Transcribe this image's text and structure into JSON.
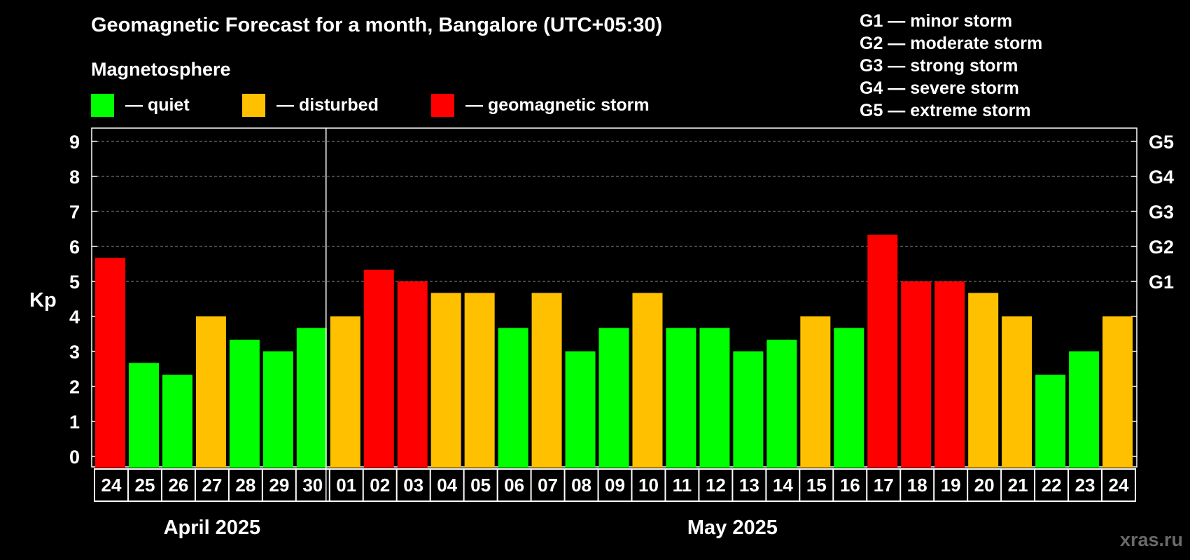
{
  "title": "Geomagnetic Forecast for a month, Bangalore (UTC+05:30)",
  "subtitle": "Magnetosphere",
  "legend": [
    {
      "label": "— quiet",
      "color": "#00ff00"
    },
    {
      "label": "— disturbed",
      "color": "#ffc000"
    },
    {
      "label": "— geomagnetic storm",
      "color": "#ff0000"
    }
  ],
  "storm_scale": [
    "G1 — minor storm",
    "G2 — moderate storm",
    "G3 — strong storm",
    "G4 — severe storm",
    "G5 — extreme storm"
  ],
  "watermark": "xras.ru",
  "colors": {
    "quiet": "#00ff00",
    "disturbed": "#ffc000",
    "storm": "#ff0000",
    "grid": "#8a8a8a",
    "axis": "#ffffff"
  },
  "chart_data": {
    "type": "bar",
    "title": "Geomagnetic Forecast for a month, Bangalore (UTC+05:30)",
    "ylabel": "Kp",
    "ylim": [
      0,
      9.3
    ],
    "yticks": [
      0,
      1,
      2,
      3,
      4,
      5,
      6,
      7,
      8,
      9
    ],
    "right_ticks": [
      {
        "value": 5,
        "label": "G1"
      },
      {
        "value": 6,
        "label": "G2"
      },
      {
        "value": 7,
        "label": "G3"
      },
      {
        "value": 8,
        "label": "G4"
      },
      {
        "value": 9,
        "label": "G5"
      }
    ],
    "categories": [
      "24",
      "25",
      "26",
      "27",
      "28",
      "29",
      "30",
      "01",
      "02",
      "03",
      "04",
      "05",
      "06",
      "07",
      "08",
      "09",
      "10",
      "11",
      "12",
      "13",
      "14",
      "15",
      "16",
      "17",
      "18",
      "19",
      "20",
      "21",
      "22",
      "23",
      "24"
    ],
    "values": [
      5.67,
      2.67,
      2.33,
      4.0,
      3.33,
      3.0,
      3.67,
      4.0,
      5.33,
      5.0,
      4.67,
      4.67,
      3.67,
      4.67,
      3.0,
      3.67,
      4.67,
      3.67,
      3.67,
      3.0,
      3.33,
      4.0,
      3.67,
      6.33,
      5.0,
      5.0,
      4.67,
      4.0,
      2.33,
      3.0,
      4.0
    ],
    "levels": [
      "storm",
      "quiet",
      "quiet",
      "disturbed",
      "quiet",
      "quiet",
      "quiet",
      "disturbed",
      "storm",
      "storm",
      "disturbed",
      "disturbed",
      "quiet",
      "disturbed",
      "quiet",
      "quiet",
      "disturbed",
      "quiet",
      "quiet",
      "quiet",
      "quiet",
      "disturbed",
      "quiet",
      "storm",
      "storm",
      "storm",
      "disturbed",
      "disturbed",
      "quiet",
      "quiet",
      "disturbed"
    ],
    "months": [
      {
        "label": "April 2025",
        "start_index": 0,
        "end_index": 6
      },
      {
        "label": "May 2025",
        "start_index": 7,
        "end_index": 30
      }
    ],
    "grid": true
  }
}
